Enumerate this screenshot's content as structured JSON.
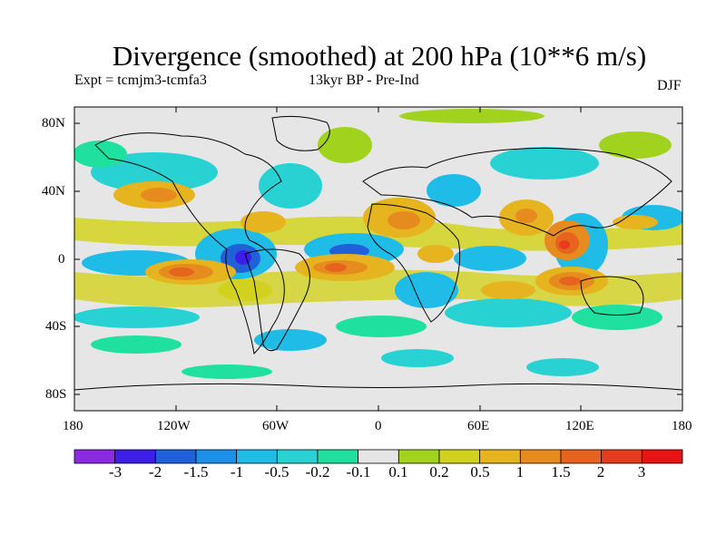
{
  "chart": {
    "title": "Divergence (smoothed) at 200 hPa (10**6 m/s)",
    "experiment": "Expt = tcmjm3-tcmfa3",
    "period": "13kyr BP - Pre-Ind",
    "season": "DJF"
  },
  "chart_data": {
    "type": "heatmap",
    "title": "Divergence (smoothed) at 200 hPa (10**6 m/s)",
    "x_ticks": [
      "180",
      "120W",
      "60W",
      "0",
      "60E",
      "120E",
      "180"
    ],
    "y_ticks": [
      "80N",
      "40N",
      "0",
      "40S",
      "80S"
    ],
    "colorbar": {
      "levels": [
        "-3",
        "-2",
        "-1.5",
        "-1",
        "-0.5",
        "-0.2",
        "-0.1",
        "0.1",
        "0.2",
        "0.5",
        "1",
        "1.5",
        "2",
        "3"
      ],
      "colors": [
        "#8a2be2",
        "#3c1ee6",
        "#2060d8",
        "#1e90e8",
        "#20bce8",
        "#28d2d2",
        "#20e0a0",
        "#e6e6e6",
        "#a0d21e",
        "#d2d21e",
        "#e6b41e",
        "#e68c1e",
        "#e6641e",
        "#e63c1e",
        "#e61414"
      ]
    },
    "features": [
      {
        "sign": "negative",
        "level": "-2",
        "region": "Central America / eastern tropical Pacific"
      },
      {
        "sign": "negative",
        "level": "-1.5",
        "region": "tropical eastern Atlantic off West Africa"
      },
      {
        "sign": "positive",
        "level": "1.5",
        "region": "Maritime Continent / South China Sea"
      },
      {
        "sign": "positive",
        "level": "1",
        "region": "subtropical South Pacific"
      },
      {
        "sign": "positive",
        "level": "1",
        "region": "equatorial central Atlantic"
      }
    ]
  }
}
